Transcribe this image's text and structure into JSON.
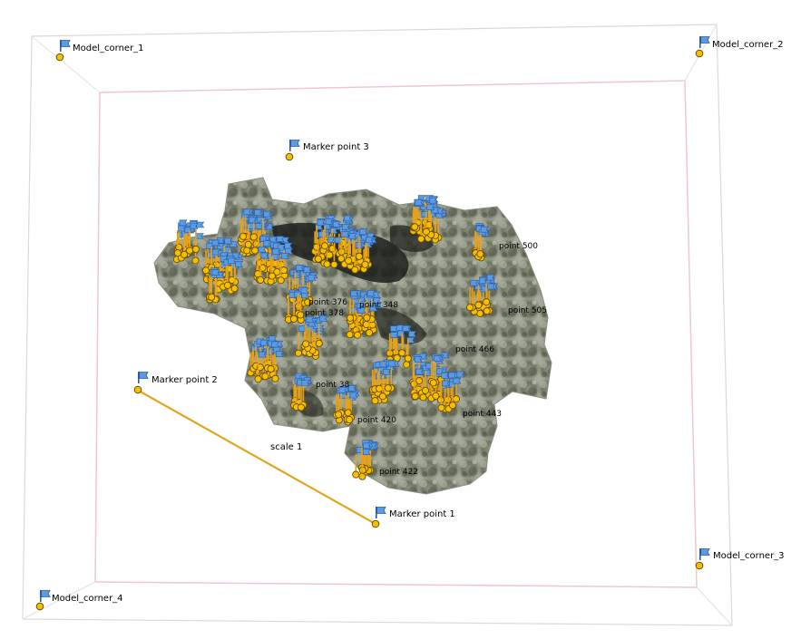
{
  "viewport": {
    "title": ""
  },
  "colors": {
    "marker_dot": "#f5c000",
    "marker_dot_stroke": "#6b4a00",
    "flag_blue": "#5b9be0",
    "flag_pole": "#2b5aa8",
    "scale_bar": "#e0a71a",
    "box_outer": "#d8d8d8",
    "box_inner": "#f3c9cf",
    "model_dark": "#5b5f52",
    "model_light": "#c4c8bb"
  },
  "markers": {
    "model_corner_1": {
      "label": "Model_corner_1",
      "icon": "flag-icon"
    },
    "model_corner_2": {
      "label": "Model_corner_2",
      "icon": "flag-icon"
    },
    "model_corner_3": {
      "label": "Model_corner_3",
      "icon": "flag-icon"
    },
    "model_corner_4": {
      "label": "Model_corner_4",
      "icon": "flag-icon"
    },
    "marker_point_1": {
      "label": "Marker point 1",
      "icon": "flag-icon"
    },
    "marker_point_2": {
      "label": "Marker point 2",
      "icon": "flag-icon"
    },
    "marker_point_3": {
      "label": "Marker point 3",
      "icon": "flag-icon"
    }
  },
  "scale_bar": {
    "label": "scale 1"
  },
  "cluster_labels": {
    "p500": "point 500",
    "p505": "point 505",
    "p348": "point 348",
    "p376": "point 376",
    "p378": "point 378",
    "p466": "point 466",
    "p38": "point 38",
    "p443": "point 443",
    "p420": "point 420",
    "p422": "point 422"
  }
}
